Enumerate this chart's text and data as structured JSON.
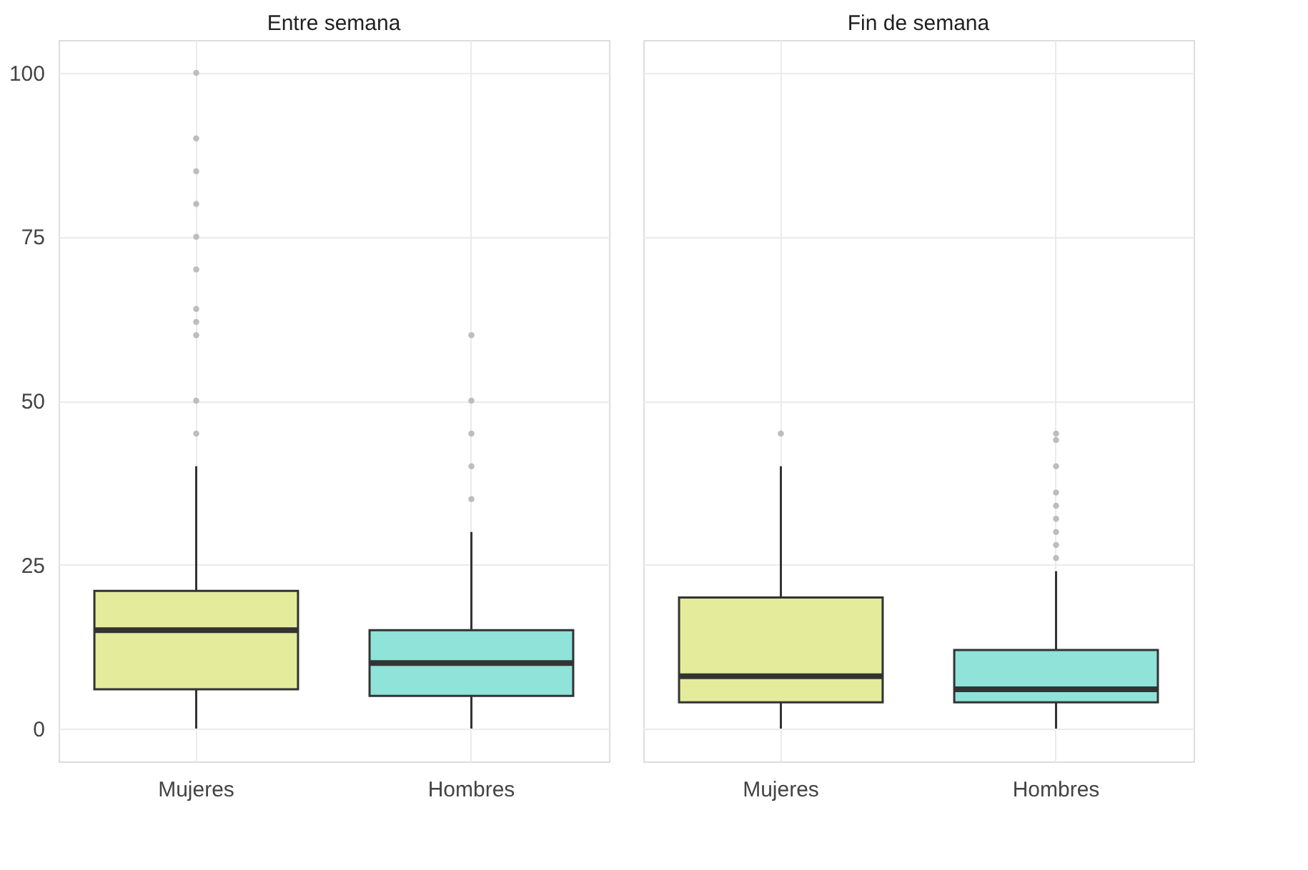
{
  "chart_data": [
    {
      "type": "box",
      "title": "Entre semana",
      "categories": [
        "Mujeres",
        "Hombres"
      ],
      "colors": [
        "#e4eb9b",
        "#8fe3d8"
      ],
      "boxes": [
        {
          "low": 0,
          "q1": 6,
          "median": 15,
          "q3": 21,
          "high": 40,
          "outliers": [
            45,
            50,
            60,
            62,
            64,
            70,
            75,
            80,
            85,
            90,
            100
          ]
        },
        {
          "low": 0,
          "q1": 5,
          "median": 10,
          "q3": 15,
          "high": 30,
          "outliers": [
            35,
            40,
            45,
            50,
            60
          ]
        }
      ],
      "ylim": [
        -5,
        105
      ],
      "yticks": [
        0,
        25,
        50,
        75,
        100
      ],
      "grid": true
    },
    {
      "type": "box",
      "title": "Fin de semana",
      "categories": [
        "Mujeres",
        "Hombres"
      ],
      "colors": [
        "#e4eb9b",
        "#8fe3d8"
      ],
      "boxes": [
        {
          "low": 0,
          "q1": 4,
          "median": 8,
          "q3": 20,
          "high": 40,
          "outliers": [
            45
          ]
        },
        {
          "low": 0,
          "q1": 4,
          "median": 6,
          "q3": 12,
          "high": 24,
          "outliers": [
            26,
            28,
            30,
            32,
            34,
            36,
            40,
            44,
            45
          ]
        }
      ],
      "ylim": [
        -5,
        105
      ],
      "yticks": [
        0,
        25,
        50,
        75,
        100
      ],
      "grid": true,
      "tick_labels": "x"
    }
  ]
}
